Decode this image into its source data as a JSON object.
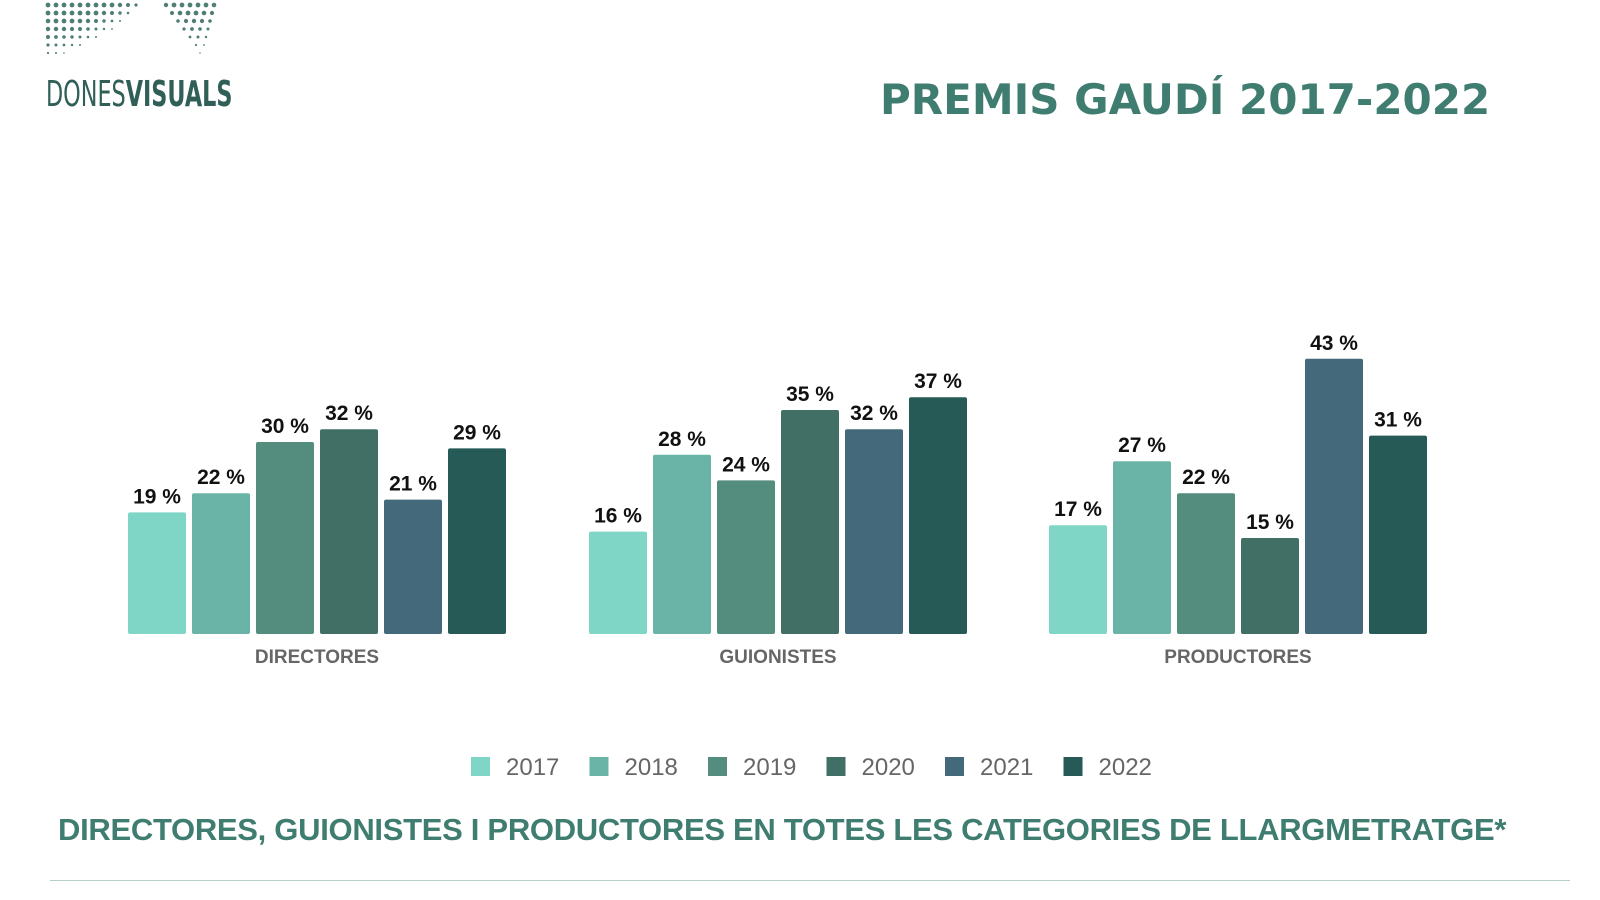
{
  "logo": {
    "light": "DONES",
    "bold": "VISUALS"
  },
  "title": "PREMIS GAUDÍ  2017-2022",
  "footer": "DIRECTORES, GUIONISTES I PRODUCTORES EN TOTES LES CATEGORIES DE LLARGMETRATGE*",
  "colors": {
    "title": "#3f7d70",
    "series": [
      "#80d6c6",
      "#6ab3a7",
      "#548c7e",
      "#416f65",
      "#44697a",
      "#255a56"
    ],
    "label": "#111111",
    "category_label": "#666666",
    "legend_text": "#666666"
  },
  "chart_data": {
    "type": "bar",
    "categories": [
      "DIRECTORES",
      "GUIONISTES",
      "PRODUCTORES"
    ],
    "series": [
      {
        "name": "2017",
        "values": [
          19,
          16,
          17
        ]
      },
      {
        "name": "2018",
        "values": [
          22,
          28,
          27
        ]
      },
      {
        "name": "2019",
        "values": [
          30,
          24,
          22
        ]
      },
      {
        "name": "2020",
        "values": [
          32,
          35,
          15
        ]
      },
      {
        "name": "2021",
        "values": [
          21,
          32,
          43
        ]
      },
      {
        "name": "2022",
        "values": [
          29,
          37,
          31
        ]
      }
    ],
    "value_suffix": " %",
    "ylim": [
      0,
      50
    ],
    "grid": false,
    "legend": "bottom-center"
  }
}
